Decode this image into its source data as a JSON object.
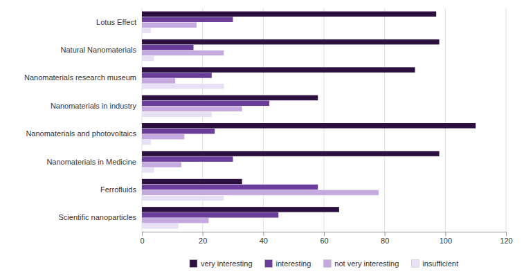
{
  "chart_data": {
    "type": "bar",
    "orientation": "horizontal",
    "categories": [
      "Scientific nanoparticles",
      "Ferrofluids",
      "Nanomaterials in Medicine",
      "Nanomaterials and photovoltaics",
      "Nanomaterials in industry",
      "Nanomaterials research museum",
      "Natural Nanomaterials",
      "Lotus Effect"
    ],
    "series": [
      {
        "name": "very interesting",
        "color": "#2b1040",
        "values": [
          65,
          33,
          98,
          110,
          58,
          90,
          98,
          97
        ]
      },
      {
        "name": "interesting",
        "color": "#6a3d9a",
        "values": [
          45,
          58,
          30,
          24,
          42,
          23,
          17,
          30
        ]
      },
      {
        "name": "not very interesting",
        "color": "#c5aadf",
        "values": [
          22,
          78,
          13,
          14,
          33,
          11,
          27,
          18
        ]
      },
      {
        "name": "insufficient",
        "color": "#e8e0f5",
        "values": [
          12,
          27,
          4,
          3,
          23,
          27,
          4,
          3
        ]
      }
    ],
    "xlim": [
      0,
      120
    ],
    "xticks": [
      0,
      20,
      40,
      60,
      80,
      100,
      120
    ],
    "grid": true,
    "legend": "bottom"
  }
}
